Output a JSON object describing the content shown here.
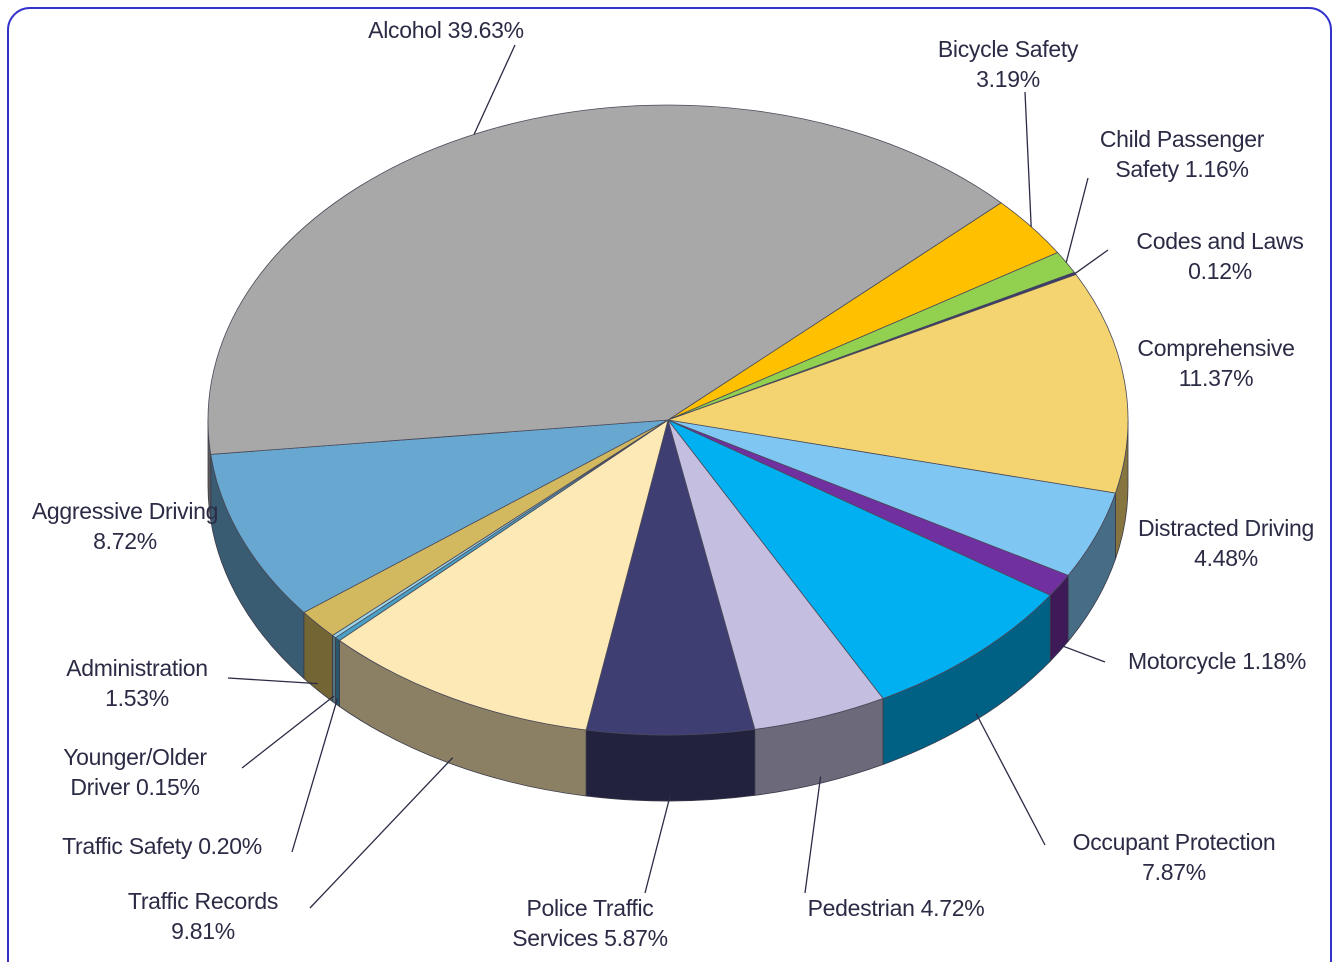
{
  "chart_data": {
    "type": "pie",
    "categories": [
      "Bicycle Safety",
      "Child Passenger Safety",
      "Codes and Laws",
      "Comprehensive",
      "Distracted Driving",
      "Motorcycle",
      "Occupant Protection",
      "Pedestrian",
      "Police Traffic Services",
      "Traffic Records",
      "Traffic Safety",
      "Younger/Older Driver",
      "Administration",
      "Aggressive Driving",
      "Alcohol"
    ],
    "values": [
      3.19,
      1.16,
      0.12,
      11.37,
      4.48,
      1.18,
      7.87,
      4.72,
      5.87,
      9.81,
      0.2,
      0.15,
      1.53,
      8.72,
      39.63
    ],
    "value_labels": [
      "3.19%",
      "1.16%",
      "0.12%",
      "11.37%",
      "4.48%",
      "1.18%",
      "7.87%",
      "4.72%",
      "5.87%",
      "9.81%",
      "0.20%",
      "0.15%",
      "1.53%",
      "8.72%",
      "39.63%"
    ],
    "colors": [
      "#ffc000",
      "#92d050",
      "#3a3a6e",
      "#f4d470",
      "#80c6f2",
      "#7030a0",
      "#00b0f0",
      "#c4bfe0",
      "#3e3e72",
      "#fde9b6",
      "#4aa0c4",
      "#9ad4ea",
      "#d2b85e",
      "#67a7d0",
      "#a8a8a8"
    ]
  }
}
